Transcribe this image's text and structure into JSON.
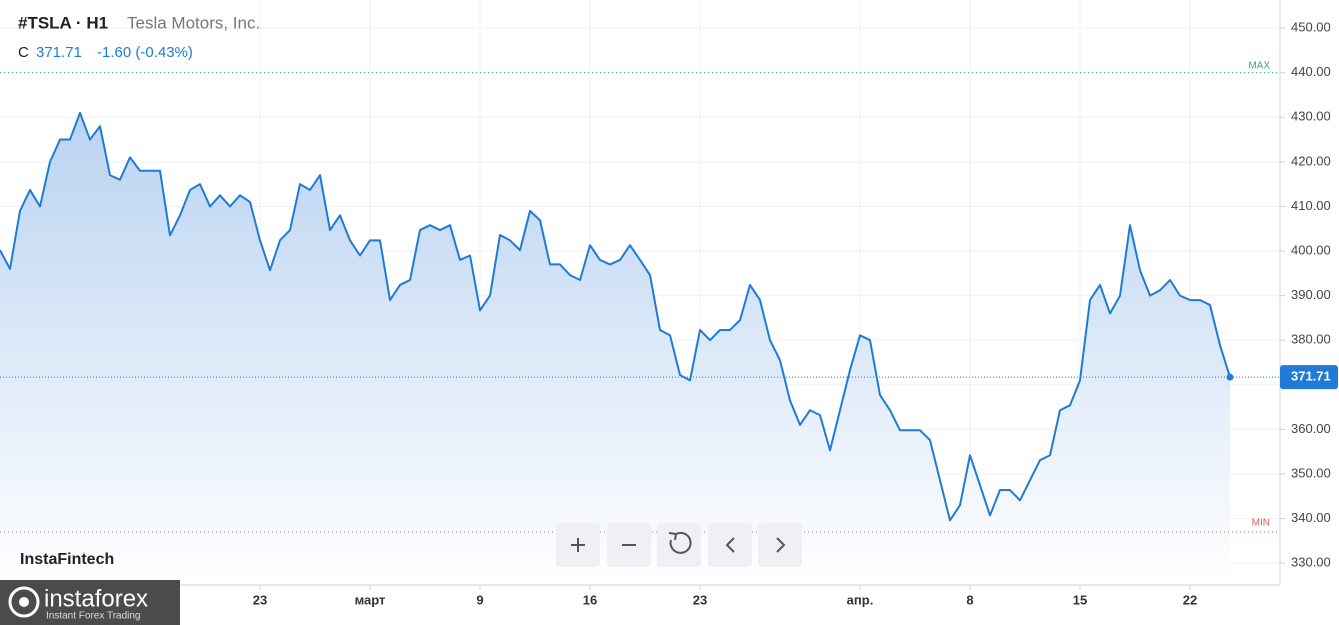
{
  "chart_data": {
    "type": "area",
    "title": "#TSLA · H1",
    "subtitle": "Tesla Motors, Inc.",
    "close_prefix": "C",
    "last_price": 371.71,
    "change": "-1.60 (-0.43%)",
    "max_label": "MAX",
    "max_level": 440,
    "min_label": "MIN",
    "min_level": 337,
    "watermark": "InstaFintech",
    "logo": "instaforex",
    "logo_tagline": "Instant Forex Trading",
    "color": "#1f7bd6",
    "xlim": [
      0,
      128
    ],
    "xticks": [
      {
        "value": 26,
        "label": "23"
      },
      {
        "value": 37,
        "label": "март"
      },
      {
        "value": 48,
        "label": "9"
      },
      {
        "value": 59,
        "label": "16"
      },
      {
        "value": 70,
        "label": "23"
      },
      {
        "value": 86,
        "label": "апр."
      },
      {
        "value": 97,
        "label": "8"
      },
      {
        "value": 108,
        "label": "15"
      },
      {
        "value": 119,
        "label": "22"
      }
    ],
    "ylim": [
      325.1,
      456.3
    ],
    "yticks": [
      {
        "value": 330,
        "label": "330.00"
      },
      {
        "value": 340,
        "label": "340.00"
      },
      {
        "value": 350,
        "label": "350.00"
      },
      {
        "value": 360,
        "label": "360.00"
      },
      {
        "value": 370,
        "label": "370.00"
      },
      {
        "value": 380,
        "label": "380.00"
      },
      {
        "value": 390,
        "label": "390.00"
      },
      {
        "value": 400,
        "label": "400.00"
      },
      {
        "value": 410,
        "label": "410.00"
      },
      {
        "value": 420,
        "label": "420.00"
      },
      {
        "value": 430,
        "label": "430.00"
      },
      {
        "value": 440,
        "label": "440.00"
      },
      {
        "value": 450,
        "label": "450.00"
      }
    ],
    "grid": true,
    "values": [
      400.2,
      396,
      409,
      413.7,
      410,
      420,
      425,
      425,
      431,
      425,
      428,
      417,
      416,
      421,
      418,
      418,
      418,
      403.5,
      408,
      413.7,
      415,
      410,
      412.5,
      410,
      412.5,
      411,
      402.4,
      395.7,
      402.4,
      404.7,
      415,
      413.7,
      417,
      404.7,
      408,
      402.4,
      399,
      402.4,
      402.4,
      389,
      392.4,
      393.5,
      404.7,
      405.8,
      404.7,
      405.8,
      398,
      399,
      386.7,
      390,
      403.6,
      402.4,
      400.2,
      409,
      406.9,
      397,
      397,
      394.6,
      393.5,
      401.3,
      398,
      397,
      398,
      401.3,
      398,
      394.6,
      382.3,
      381.1,
      372.2,
      371,
      382.3,
      380,
      382.3,
      382.3,
      384.5,
      392.4,
      389,
      380,
      375.5,
      366.5,
      361,
      364.3,
      363.2,
      355.3,
      364.3,
      373.3,
      381.1,
      380,
      367.7,
      364.3,
      359.8,
      359.8,
      359.8,
      357.6,
      348.6,
      339.6,
      343,
      354.2,
      347.5,
      340.7,
      346.4,
      346.4,
      344.1,
      348.6,
      353.1,
      354.2,
      364.3,
      365.4,
      371,
      389,
      392.4,
      386,
      390,
      405.8,
      395.7,
      390,
      391.2,
      393.5,
      390,
      389,
      389,
      387.9,
      378.9,
      371.71
    ]
  }
}
